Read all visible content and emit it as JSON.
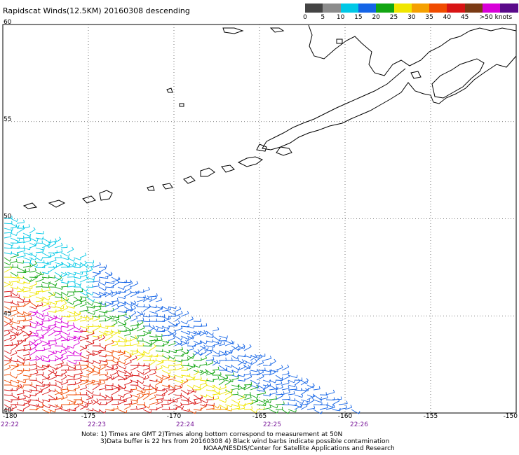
{
  "title": "Rapidscat Winds(12.5KM) 20160308 descending",
  "colorbar": {
    "labels": [
      "0",
      "5",
      "10",
      "15",
      "20",
      "25",
      "30",
      "35",
      "40",
      "45",
      ">50 knots"
    ],
    "colors": [
      "#444444",
      "#8c8c8c",
      "#00c8e6",
      "#1464e6",
      "#12a612",
      "#f0e600",
      "#f5a000",
      "#f04b00",
      "#d81414",
      "#7a3a14",
      "#d800d8",
      "#5a0a8a"
    ]
  },
  "map": {
    "lat_labels": [
      "60",
      "55",
      "50",
      "45",
      "40"
    ],
    "lon_labels": [
      "-180",
      "-175",
      "-170",
      "-165",
      "-160",
      "-155",
      "-150"
    ],
    "time_labels": [
      "22:22",
      "22:23",
      "22:24",
      "22:25",
      "22:26"
    ],
    "lat_range": [
      40,
      60
    ],
    "lon_range": [
      -180,
      -150
    ],
    "grid": "dotted",
    "coastline_color": "#000000"
  },
  "notes": {
    "line1": "Note: 1) Times are GMT 2)Times along bottom correspond to measurement at 50N",
    "line2": "3)Data buffer is 22 hrs from 20160308 4) Black wind barbs indicate possible contamination",
    "line3": "NOAA/NESDIS/Center for Satellite Applications and Research"
  }
}
